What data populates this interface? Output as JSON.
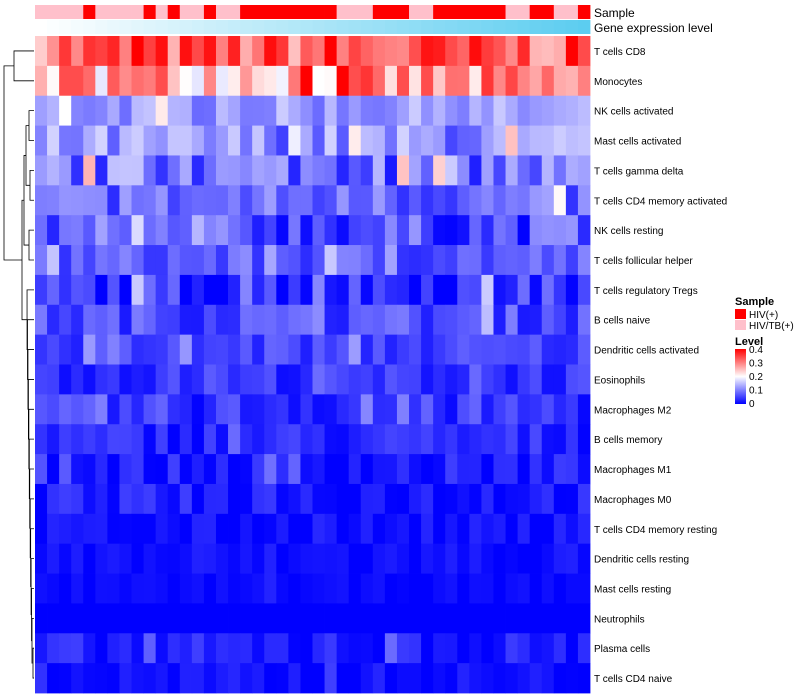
{
  "chart_data": {
    "type": "heatmap",
    "title": "",
    "annotations": [
      {
        "label": "Sample",
        "legend_title": "Sample"
      },
      {
        "label": "Gene expression level"
      }
    ],
    "sample_groups": [
      "HIV(+)",
      "HIV/TB(+)"
    ],
    "sample_colors": {
      "HIV(+)": "#ff0000",
      "HIV/TB(+)": "#ffc0cb"
    },
    "sample_annotation": [
      1,
      1,
      1,
      1,
      0,
      1,
      1,
      1,
      1,
      0,
      1,
      0,
      1,
      1,
      0,
      1,
      1,
      0,
      0,
      0,
      0,
      0,
      0,
      0,
      0,
      1,
      1,
      1,
      0,
      0,
      0,
      1,
      1,
      0,
      0,
      0,
      0,
      0,
      0,
      1,
      1,
      0,
      0,
      1,
      1,
      0
    ],
    "expression_gradient": [
      "#ffffff",
      "#5ccdf0"
    ],
    "row_labels": [
      "T cells CD8",
      "Monocytes",
      "NK cells activated",
      "Mast cells activated",
      "T cells gamma delta",
      "T cells CD4 memory activated",
      "NK cells resting",
      "T cells follicular helper",
      "T cells regulatory  Tregs",
      "B cells naive",
      "Dendritic cells activated",
      "Eosinophils",
      "Macrophages M2",
      "B cells memory",
      "Macrophages M1",
      "Macrophages M0",
      "T cells CD4 memory resting",
      "Dendritic cells resting",
      "Mast cells resting",
      "Neutrophils",
      "Plasma cells",
      "T cells CD4 naive"
    ],
    "row_mean_level": [
      0.32,
      0.27,
      0.12,
      0.11,
      0.09,
      0.08,
      0.06,
      0.07,
      0.04,
      0.06,
      0.05,
      0.04,
      0.04,
      0.03,
      0.02,
      0.02,
      0.01,
      0.01,
      0.005,
      0.0,
      0.02,
      0.01
    ],
    "row_spread": [
      0.08,
      0.09,
      0.04,
      0.06,
      0.07,
      0.05,
      0.06,
      0.04,
      0.05,
      0.04,
      0.03,
      0.03,
      0.04,
      0.03,
      0.03,
      0.03,
      0.02,
      0.02,
      0.01,
      0.0,
      0.03,
      0.02
    ],
    "color_scale": {
      "legend_title": "Level",
      "ticks": [
        "0.4",
        "0.3",
        "0.2",
        "0.1",
        "0"
      ],
      "min": 0,
      "max": 0.4,
      "low": "#0000ff",
      "mid": "#ffffff",
      "high": "#ff0000"
    },
    "legend_position": "right"
  }
}
